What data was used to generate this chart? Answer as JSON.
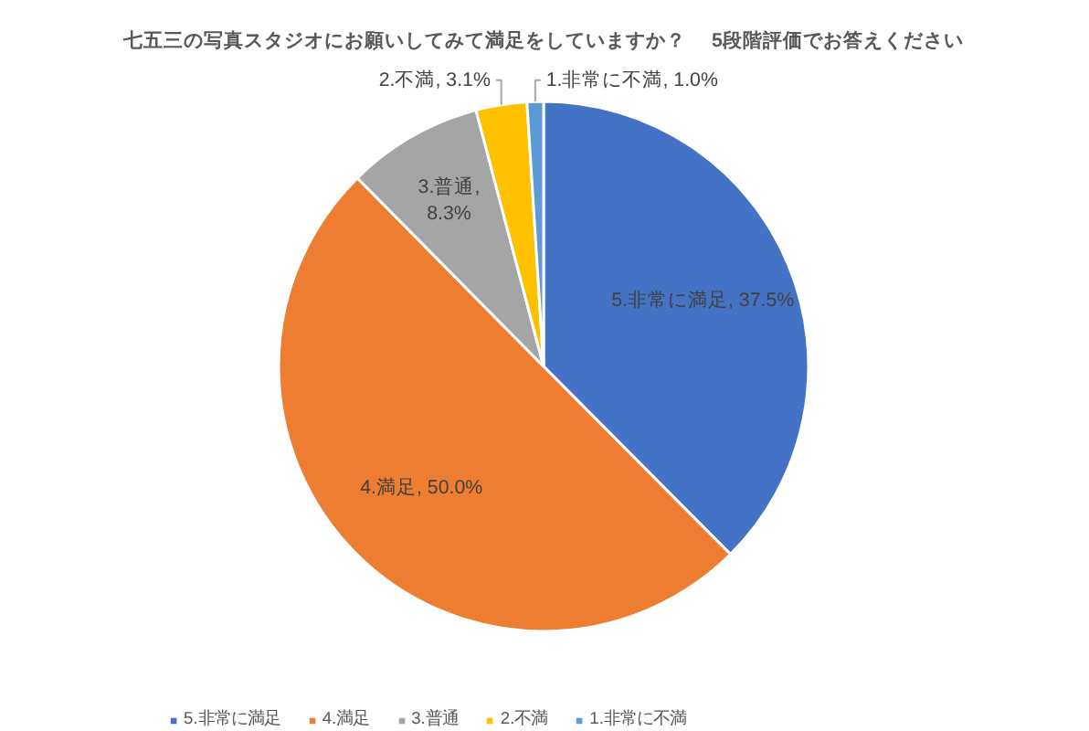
{
  "chart_data": {
    "type": "pie",
    "title": "七五三の写真スタジオにお願いしてみて満足をしていますか？　 5段階評価でお答えください",
    "categories": [
      "5.非常に満足",
      "4.満足",
      "3.普通",
      "2.不満",
      "1.非常に不満",
      null,
      null,
      null
    ],
    "values": [
      37.5,
      50.0,
      8.3,
      3.1,
      1.0,
      0,
      0,
      0
    ],
    "colors": [
      "#4472c4",
      "#ed7d31",
      "#a5a5a5",
      "#ffc000",
      "#5b9bd5",
      "#70ad47",
      "#264478",
      "#9e480e"
    ],
    "value_labels": [
      "5.非常に満足, 37.5%",
      "4.満足, 50.0%",
      "3.普通, 8.3%",
      "2.不満, 3.1%",
      "1.非常に不満, 1.0%",
      null,
      null,
      null
    ],
    "legend": "bottom"
  }
}
